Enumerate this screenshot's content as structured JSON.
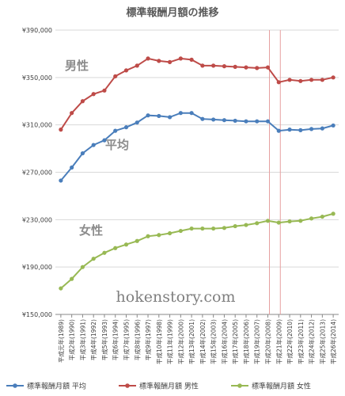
{
  "chart_data": {
    "type": "line",
    "title": "標準報酬月額の推移",
    "categories": [
      "平成元年(1989)",
      "平成2年(1990)",
      "平成3年(1991)",
      "平成4年(1992)",
      "平成5年(1993)",
      "平成6年(1994)",
      "平成7年(1995)",
      "平成8年(1996)",
      "平成9年(1997)",
      "平成10年(1998)",
      "平成11年(1999)",
      "平成12年(2000)",
      "平成13年(2001)",
      "平成14年(2002)",
      "平成15年(2003)",
      "平成16年(2004)",
      "平成17年(2005)",
      "平成18年(2006)",
      "平成19年(2007)",
      "平成20年(2008)",
      "平成21年(2009)",
      "平成22年(2010)",
      "平成23年(2011)",
      "平成24年(2012)",
      "平成25年(2013)",
      "平成26年(2014)"
    ],
    "series": [
      {
        "name": "標準報酬月額 平均",
        "color": "#4a7ebb",
        "values": [
          263000,
          274000,
          286000,
          293000,
          297000,
          305000,
          308000,
          312000,
          318000,
          317500,
          316500,
          320000,
          320000,
          315000,
          314500,
          314000,
          313500,
          313000,
          313000,
          313000,
          305000,
          306000,
          305500,
          306500,
          307000,
          309500
        ]
      },
      {
        "name": "標準報酬月額 男性",
        "color": "#be4b48",
        "values": [
          306000,
          320000,
          330000,
          336000,
          339000,
          351000,
          356000,
          360000,
          366000,
          364000,
          363000,
          366000,
          365000,
          360000,
          360000,
          359500,
          359000,
          358500,
          358000,
          358500,
          346000,
          348000,
          347000,
          348000,
          348000,
          350000
        ]
      },
      {
        "name": "標準報酬月額 女性",
        "color": "#98b954",
        "values": [
          172000,
          180000,
          190000,
          197000,
          202000,
          206000,
          209000,
          212000,
          216000,
          217000,
          218500,
          220500,
          222500,
          222500,
          222500,
          223000,
          224500,
          225500,
          227000,
          229000,
          227500,
          228500,
          229000,
          231000,
          232500,
          235000
        ]
      }
    ],
    "ylim": [
      150000,
      390000
    ],
    "yticks": [
      150000,
      190000,
      230000,
      270000,
      310000,
      350000,
      390000
    ],
    "ytick_labels": [
      "¥150,000",
      "¥190,000",
      "¥230,000",
      "¥270,000",
      "¥310,000",
      "¥350,000",
      "¥390,000"
    ],
    "grid": true,
    "reference_lines_at": [
      "平成20年(2008)",
      "平成21年(2009)"
    ],
    "legend_position": "bottom",
    "annotations": {
      "male": "男性",
      "average": "平均",
      "female": "女性"
    },
    "watermark": "hokenstory.com"
  }
}
